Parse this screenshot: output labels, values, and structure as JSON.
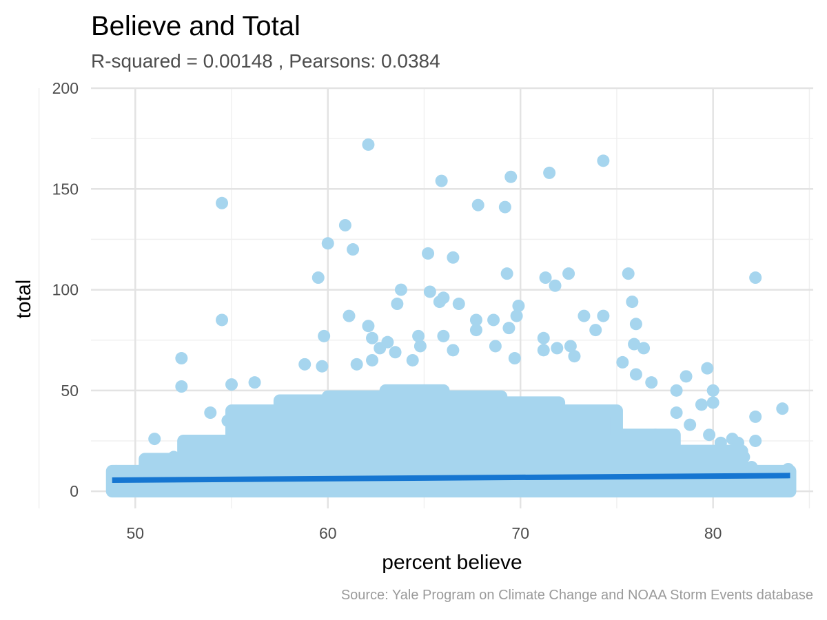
{
  "chart_data": {
    "type": "scatter",
    "title": "Believe and Total",
    "subtitle": "R-squared =  0.00148 , Pearsons: 0.0384",
    "xlabel": "percent believe",
    "ylabel": "total",
    "caption": "Source: Yale Program on Climate Change and NOAA Storm Events database",
    "xlim": [
      47.7,
      85.2
    ],
    "ylim": [
      -8.5,
      200
    ],
    "x_ticks": [
      50,
      60,
      70,
      80
    ],
    "y_ticks": [
      0,
      50,
      100,
      150,
      200
    ],
    "x_tick_labels": [
      "50",
      "60",
      "70",
      "80"
    ],
    "y_tick_labels": [
      "0",
      "50",
      "100",
      "150",
      "200"
    ],
    "grid": true,
    "legend": "none",
    "point_color": "#a6d5ee",
    "line_color": "#1676d1",
    "trend_line": {
      "x": [
        48.8,
        84.0
      ],
      "y": [
        5.5,
        7.8
      ]
    },
    "series": [
      {
        "x": [
          62.1,
          74.3,
          71.5,
          69.5,
          65.9,
          54.5,
          67.8,
          69.2,
          60.9,
          60.0,
          61.3,
          65.2,
          66.5,
          59.5,
          69.3,
          72.5,
          75.6,
          82.2,
          71.3,
          71.8,
          63.8,
          65.3,
          66.0,
          63.6,
          65.8,
          66.8,
          69.9,
          69.8,
          75.8,
          73.3,
          74.3,
          54.5,
          67.7,
          68.6,
          71.2,
          76.0,
          69.4,
          62.1,
          73.9,
          68.7,
          66.0,
          67.7,
          64.7,
          62.3,
          66.5,
          59.8,
          64.8,
          71.9,
          71.2,
          75.9,
          76.4,
          61.1,
          62.3,
          72.6,
          75.3,
          63.1,
          64.4,
          63.5,
          52.4,
          69.7,
          72.8,
          62.7,
          61.5,
          59.7,
          58.8,
          56.2,
          55.0,
          52.4,
          76.8,
          78.6,
          79.7,
          80.0,
          76.0,
          78.1,
          80.0,
          79.4,
          82.2,
          83.6,
          53.9,
          54.8,
          55.5,
          56.7,
          58.0,
          57.4,
          78.1,
          78.8,
          79.8,
          81.0,
          80.4,
          81.3,
          82.2,
          77.0,
          51.0,
          52.8,
          53.4,
          52.0,
          51.5,
          49.0,
          49.8,
          50.3,
          83.9,
          83.0,
          82.0,
          81.6
        ],
        "y": [
          172,
          164,
          158,
          156,
          154,
          143,
          142,
          141,
          132,
          123,
          120,
          118,
          116,
          106,
          108,
          108,
          108,
          106,
          106,
          102,
          100,
          99,
          96,
          93,
          94,
          93,
          92,
          87,
          94,
          87,
          87,
          85,
          85,
          85,
          76,
          83,
          81,
          82,
          80,
          72,
          77,
          80,
          77,
          76,
          70,
          77,
          72,
          71,
          70,
          73,
          71,
          87,
          65,
          72,
          64,
          74,
          65,
          69,
          66,
          66,
          67,
          71,
          63,
          62,
          63,
          54,
          53,
          52,
          54,
          57,
          61,
          50,
          58,
          50,
          44,
          43,
          37,
          41,
          39,
          35,
          37,
          38,
          39,
          40,
          39,
          33,
          28,
          26,
          24,
          24,
          25,
          28,
          26,
          25,
          21,
          17,
          14,
          10,
          9,
          7,
          11,
          9,
          12,
          17
        ]
      }
    ],
    "cloud_bands": [
      {
        "x": [
          48.8,
          50.5
        ],
        "y": [
          0,
          10
        ]
      },
      {
        "x": [
          50.5,
          52.5
        ],
        "y": [
          0,
          16
        ]
      },
      {
        "x": [
          52.5,
          55.0
        ],
        "y": [
          0,
          25
        ]
      },
      {
        "x": [
          55.0,
          57.5
        ],
        "y": [
          0,
          40
        ]
      },
      {
        "x": [
          57.5,
          60.0
        ],
        "y": [
          0,
          45
        ]
      },
      {
        "x": [
          60.0,
          63.0
        ],
        "y": [
          0,
          47
        ]
      },
      {
        "x": [
          63.0,
          66.0
        ],
        "y": [
          0,
          50
        ]
      },
      {
        "x": [
          66.0,
          69.0
        ],
        "y": [
          0,
          47
        ]
      },
      {
        "x": [
          69.0,
          72.0
        ],
        "y": [
          0,
          44
        ]
      },
      {
        "x": [
          72.0,
          75.0
        ],
        "y": [
          0,
          40
        ]
      },
      {
        "x": [
          75.0,
          78.0
        ],
        "y": [
          0,
          28
        ]
      },
      {
        "x": [
          78.0,
          81.5
        ],
        "y": [
          0,
          20
        ]
      },
      {
        "x": [
          81.5,
          84.0
        ],
        "y": [
          0,
          10
        ]
      }
    ]
  }
}
